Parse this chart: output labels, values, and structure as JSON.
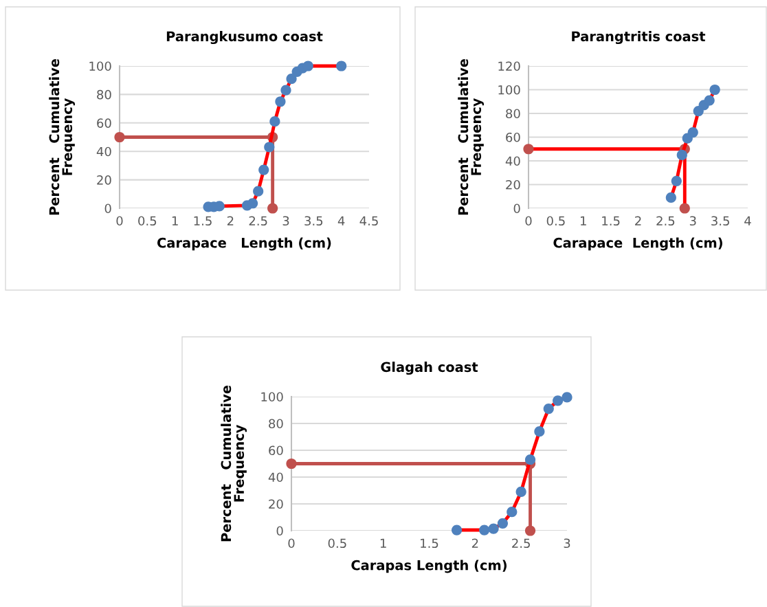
{
  "chart_data": [
    {
      "type": "line",
      "title": "Parangkusumo coast",
      "xlabel": "Carapace   Length (cm)",
      "ylabel": "Percent   Cumulative\nFrequency",
      "xlim": [
        0,
        4.5
      ],
      "xticks": [
        0,
        0.5,
        1,
        1.5,
        2,
        2.5,
        3,
        3.5,
        4,
        4.5
      ],
      "ylim": [
        0,
        100
      ],
      "yticks": [
        0,
        20,
        40,
        60,
        80,
        100
      ],
      "grid": "y",
      "legend": false,
      "marker": "circle",
      "line_style": "solid",
      "series": [
        {
          "color": "#ff0000",
          "colors": [
            "#4f81bd",
            "#4f81bd",
            "#4f81bd",
            "#4f81bd",
            "#4f81bd",
            "#4f81bd",
            "#4f81bd",
            "#4f81bd",
            "#4f81bd",
            "#4f81bd",
            "#4f81bd",
            "#4f81bd",
            "#4f81bd",
            "#4f81bd",
            "#4f81bd",
            "#4f81bd"
          ],
          "x": [
            1.6,
            1.7,
            1.8,
            2.3,
            2.4,
            2.5,
            2.6,
            2.7,
            2.8,
            2.9,
            3.0,
            3.1,
            3.2,
            3.3,
            3.4,
            4.0
          ],
          "values": [
            1,
            1,
            1.5,
            2,
            3.5,
            12,
            27,
            43,
            61,
            75,
            83,
            91,
            96,
            98.5,
            100,
            100
          ]
        },
        {
          "color": "#c0504d",
          "colors": [
            "#c0504d",
            "#c0504d",
            "#c0504d"
          ],
          "x": [
            0,
            2.76,
            2.76
          ],
          "values": [
            50,
            50,
            0
          ]
        }
      ]
    },
    {
      "type": "line",
      "title": "Parangtritis coast",
      "xlabel": "Carapace  Length (cm)",
      "ylabel": "Percent   Cumulative\nFrequency",
      "xlim": [
        0,
        4
      ],
      "xticks": [
        0,
        0.5,
        1,
        1.5,
        2,
        2.5,
        3,
        3.5,
        4
      ],
      "ylim": [
        0,
        120
      ],
      "yticks": [
        0,
        20,
        40,
        60,
        80,
        100,
        120
      ],
      "grid": "y",
      "legend": false,
      "marker": "circle",
      "line_style": "solid",
      "series": [
        {
          "color": "#ff0000",
          "colors": [
            "#4f81bd",
            "#4f81bd",
            "#4f81bd",
            "#4f81bd",
            "#4f81bd",
            "#4f81bd",
            "#4f81bd",
            "#4f81bd",
            "#4f81bd"
          ],
          "x": [
            2.6,
            2.7,
            2.8,
            2.9,
            3.0,
            3.1,
            3.2,
            3.3,
            3.4
          ],
          "values": [
            9,
            23,
            45,
            59,
            64,
            82,
            87,
            91,
            100
          ]
        },
        {
          "color": "#ff0000",
          "colors": [
            "#c0504d",
            "#c0504d",
            "#c0504d"
          ],
          "x": [
            0,
            2.85,
            2.85
          ],
          "values": [
            50,
            50,
            0
          ]
        }
      ]
    },
    {
      "type": "line",
      "title": "Glagah coast",
      "xlabel": "Carapas Length (cm)",
      "ylabel": "Percent   Cumulative\nFrequency",
      "xlim": [
        0,
        3
      ],
      "xticks": [
        0,
        0.5,
        1,
        1.5,
        2,
        2.5,
        3
      ],
      "ylim": [
        0,
        100
      ],
      "yticks": [
        0,
        20,
        40,
        60,
        80,
        100
      ],
      "grid": "y",
      "legend": false,
      "marker": "circle",
      "line_style": "solid",
      "series": [
        {
          "color": "#ff0000",
          "colors": [
            "#4f81bd",
            "#4f81bd",
            "#4f81bd",
            "#4f81bd",
            "#4f81bd",
            "#4f81bd",
            "#4f81bd",
            "#4f81bd",
            "#4f81bd",
            "#4f81bd",
            "#4f81bd"
          ],
          "x": [
            1.8,
            2.1,
            2.2,
            2.3,
            2.4,
            2.5,
            2.6,
            2.7,
            2.8,
            2.9,
            3.0
          ],
          "values": [
            0.5,
            0.5,
            1.5,
            5.5,
            14,
            29,
            53,
            74,
            91,
            97,
            99.5
          ]
        },
        {
          "color": "#c0504d",
          "colors": [
            "#c0504d",
            "#c0504d",
            "#c0504d"
          ],
          "x": [
            0,
            2.6,
            2.6
          ],
          "values": [
            50,
            50,
            0
          ]
        }
      ]
    }
  ]
}
